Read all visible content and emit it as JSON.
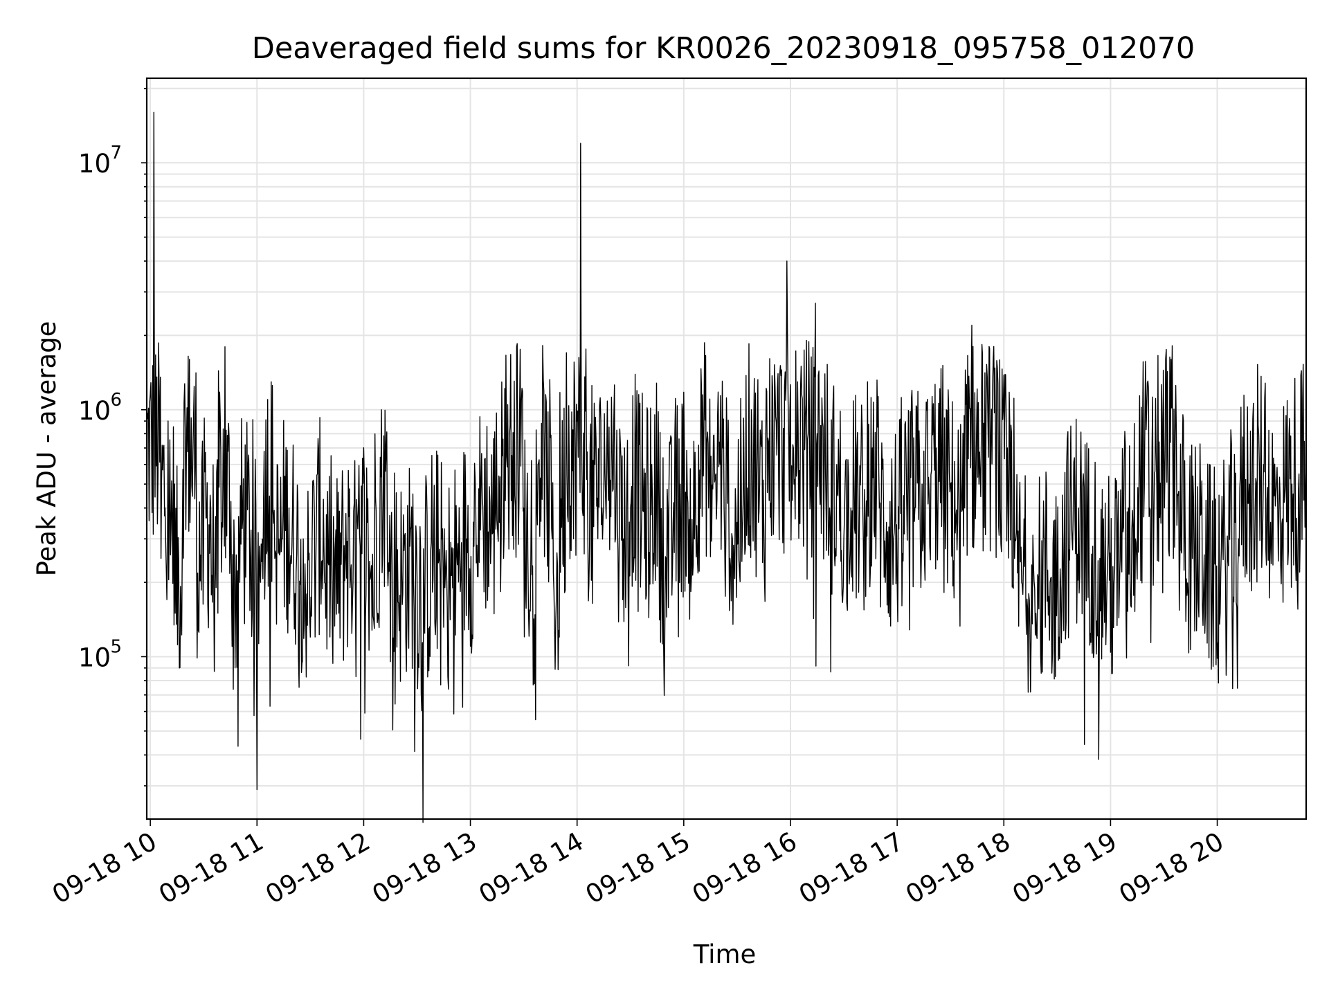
{
  "chart_data": {
    "type": "line",
    "title": "Deaveraged field sums for KR0026_20230918_095758_012070",
    "xlabel": "Time",
    "ylabel": "Peak ADU - average",
    "y_scale": "log",
    "ylim": [
      22000,
      22000000
    ],
    "xlim": [
      "2023-09-18 09:58",
      "2023-09-18 20:50"
    ],
    "grid": true,
    "grid_color": "#e4e4e4",
    "line_color": "#000000",
    "x_tick_labels": [
      "09-18 10",
      "09-18 11",
      "09-18 12",
      "09-18 13",
      "09-18 14",
      "09-18 15",
      "09-18 16",
      "09-18 17",
      "09-18 18",
      "09-18 19",
      "09-18 20"
    ],
    "y_tick_labels": [
      {
        "base": "10",
        "exp": "5",
        "value": 100000
      },
      {
        "base": "10",
        "exp": "6",
        "value": 1000000
      },
      {
        "base": "10",
        "exp": "7",
        "value": 10000000
      }
    ],
    "series": [
      {
        "x": [
          "2023-09-18 09:58",
          "2023-09-18 10:02",
          "2023-09-18 10:06",
          "2023-09-18 10:10",
          "2023-09-18 10:14",
          "2023-09-18 10:18",
          "2023-09-18 10:22",
          "2023-09-18 10:26",
          "2023-09-18 10:30",
          "2023-09-18 10:34",
          "2023-09-18 10:38",
          "2023-09-18 10:42",
          "2023-09-18 10:46",
          "2023-09-18 10:50",
          "2023-09-18 10:54",
          "2023-09-18 10:58",
          "2023-09-18 11:02",
          "2023-09-18 11:06",
          "2023-09-18 11:10",
          "2023-09-18 11:14",
          "2023-09-18 11:18",
          "2023-09-18 11:22",
          "2023-09-18 11:26",
          "2023-09-18 11:30",
          "2023-09-18 11:34",
          "2023-09-18 11:38",
          "2023-09-18 11:42",
          "2023-09-18 11:46",
          "2023-09-18 11:50",
          "2023-09-18 11:54",
          "2023-09-18 11:58",
          "2023-09-18 12:02",
          "2023-09-18 12:06",
          "2023-09-18 12:10",
          "2023-09-18 12:14",
          "2023-09-18 12:18",
          "2023-09-18 12:22",
          "2023-09-18 12:26",
          "2023-09-18 12:30",
          "2023-09-18 12:34",
          "2023-09-18 12:38",
          "2023-09-18 12:42",
          "2023-09-18 12:46",
          "2023-09-18 12:50",
          "2023-09-18 12:54",
          "2023-09-18 12:58",
          "2023-09-18 13:02",
          "2023-09-18 13:06",
          "2023-09-18 13:10",
          "2023-09-18 13:14",
          "2023-09-18 13:18",
          "2023-09-18 13:22",
          "2023-09-18 13:26",
          "2023-09-18 13:30",
          "2023-09-18 13:34",
          "2023-09-18 13:38",
          "2023-09-18 13:42",
          "2023-09-18 13:46",
          "2023-09-18 13:50",
          "2023-09-18 13:54",
          "2023-09-18 13:58",
          "2023-09-18 14:02",
          "2023-09-18 14:06",
          "2023-09-18 14:10",
          "2023-09-18 14:14",
          "2023-09-18 14:18",
          "2023-09-18 14:22",
          "2023-09-18 14:26",
          "2023-09-18 14:30",
          "2023-09-18 14:34",
          "2023-09-18 14:38",
          "2023-09-18 14:42",
          "2023-09-18 14:46",
          "2023-09-18 14:50",
          "2023-09-18 14:54",
          "2023-09-18 14:58",
          "2023-09-18 15:02",
          "2023-09-18 15:06",
          "2023-09-18 15:10",
          "2023-09-18 15:14",
          "2023-09-18 15:18",
          "2023-09-18 15:22",
          "2023-09-18 15:26",
          "2023-09-18 15:30",
          "2023-09-18 15:34",
          "2023-09-18 15:38",
          "2023-09-18 15:42",
          "2023-09-18 15:46",
          "2023-09-18 15:50",
          "2023-09-18 15:54",
          "2023-09-18 15:58",
          "2023-09-18 16:02",
          "2023-09-18 16:06",
          "2023-09-18 16:10",
          "2023-09-18 16:14",
          "2023-09-18 16:18",
          "2023-09-18 16:22",
          "2023-09-18 16:26",
          "2023-09-18 16:30",
          "2023-09-18 16:34",
          "2023-09-18 16:38",
          "2023-09-18 16:42",
          "2023-09-18 16:46",
          "2023-09-18 16:50",
          "2023-09-18 16:54",
          "2023-09-18 16:58",
          "2023-09-18 17:02",
          "2023-09-18 17:06",
          "2023-09-18 17:10",
          "2023-09-18 17:14",
          "2023-09-18 17:18",
          "2023-09-18 17:22",
          "2023-09-18 17:26",
          "2023-09-18 17:30",
          "2023-09-18 17:34",
          "2023-09-18 17:38",
          "2023-09-18 17:42",
          "2023-09-18 17:46",
          "2023-09-18 17:50",
          "2023-09-18 17:54",
          "2023-09-18 17:58",
          "2023-09-18 18:02",
          "2023-09-18 18:06",
          "2023-09-18 18:10",
          "2023-09-18 18:14",
          "2023-09-18 18:18",
          "2023-09-18 18:22",
          "2023-09-18 18:26",
          "2023-09-18 18:30",
          "2023-09-18 18:34",
          "2023-09-18 18:38",
          "2023-09-18 18:42",
          "2023-09-18 18:46",
          "2023-09-18 18:50",
          "2023-09-18 18:54",
          "2023-09-18 18:58",
          "2023-09-18 19:02",
          "2023-09-18 19:06",
          "2023-09-18 19:10",
          "2023-09-18 19:14",
          "2023-09-18 19:18",
          "2023-09-18 19:22",
          "2023-09-18 19:26",
          "2023-09-18 19:30",
          "2023-09-18 19:34",
          "2023-09-18 19:38",
          "2023-09-18 19:42",
          "2023-09-18 19:46",
          "2023-09-18 19:50",
          "2023-09-18 19:54",
          "2023-09-18 19:58",
          "2023-09-18 20:02",
          "2023-09-18 20:06",
          "2023-09-18 20:10",
          "2023-09-18 20:14",
          "2023-09-18 20:18",
          "2023-09-18 20:22",
          "2023-09-18 20:26",
          "2023-09-18 20:30",
          "2023-09-18 20:34",
          "2023-09-18 20:38",
          "2023-09-18 20:42",
          "2023-09-18 20:46",
          "2023-09-18 20:50"
        ],
        "y": [
          300000,
          16000000,
          250000,
          900000,
          150000,
          300000,
          1600000,
          250000,
          300000,
          400000,
          150000,
          1800000,
          110000,
          300000,
          400000,
          270000,
          200000,
          1100000,
          250000,
          300000,
          400000,
          220000,
          300000,
          120000,
          550000,
          200000,
          280000,
          150000,
          380000,
          200000,
          280000,
          350000,
          130000,
          1000000,
          240000,
          230000,
          180000,
          280000,
          210000,
          150000,
          290000,
          240000,
          220000,
          190000,
          270000,
          300000,
          280000,
          500000,
          320000,
          400000,
          650000,
          800000,
          1800000,
          400000,
          250000,
          600000,
          750000,
          300000,
          120000,
          1700000,
          300000,
          12000000,
          350000,
          600000,
          400000,
          850000,
          500000,
          300000,
          400000,
          700000,
          250000,
          600000,
          400000,
          250000,
          350000,
          500000,
          450000,
          300000,
          1200000,
          400000,
          550000,
          700000,
          250000,
          350000,
          450000,
          1000000,
          350000,
          600000,
          1200000,
          1400000,
          4000000,
          500000,
          1500000,
          800000,
          2700000,
          900000,
          400000,
          600000,
          300000,
          400000,
          450000,
          350000,
          700000,
          400000,
          350000,
          300000,
          380000,
          500000,
          400000,
          500000,
          450000,
          700000,
          450000,
          500000,
          350000,
          400000,
          2200000,
          500000,
          1000000,
          1600000,
          400000,
          700000,
          250000,
          200000,
          180000,
          150000,
          250000,
          200000,
          200000,
          300000,
          350000,
          400000,
          300000,
          280000,
          250000,
          200000,
          200000,
          250000,
          400000,
          300000,
          900000,
          400000,
          500000,
          700000,
          1600000,
          450000,
          300000,
          250000,
          300000,
          250000,
          200000,
          220000,
          250000,
          350000,
          450000,
          500000,
          500000,
          600000,
          350000,
          400000,
          450000,
          500000,
          550000,
          600000
        ]
      }
    ]
  }
}
